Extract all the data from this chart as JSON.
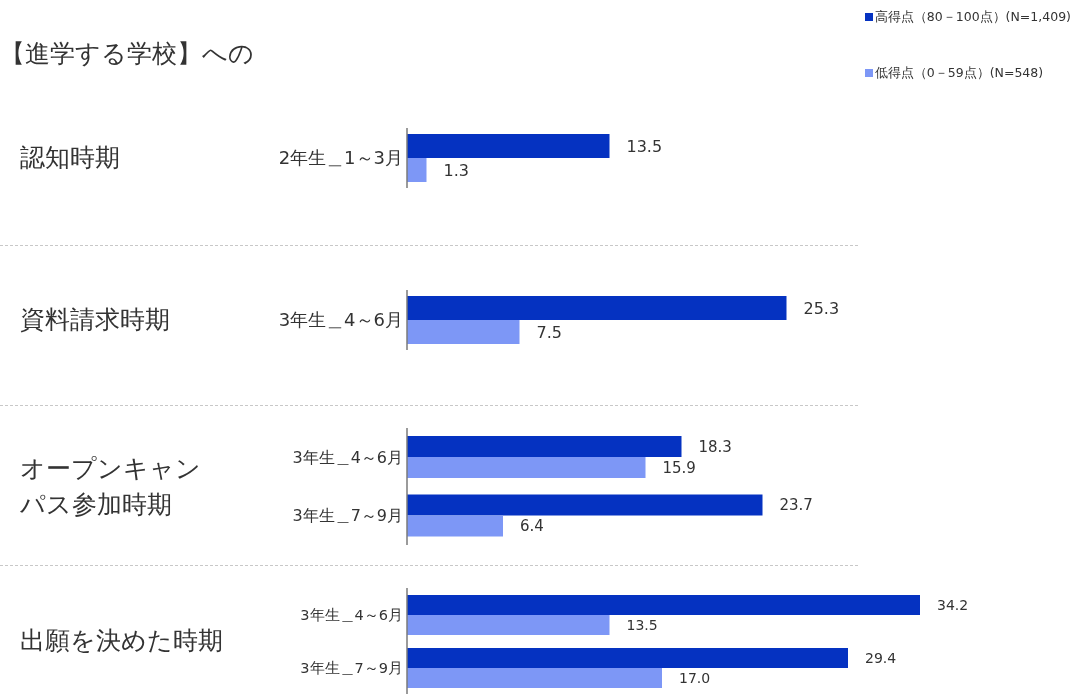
{
  "chart_data": [
    {
      "type": "bar",
      "orientation": "horizontal",
      "title": "【進学する学校】への",
      "ylabel": "認知時期",
      "categories": [
        "2年生＿1～3月"
      ],
      "series": [
        {
          "name": "高得点（80－100点）(N=1,409)",
          "color": "#0532c1",
          "values": [
            13.5
          ],
          "value_labels": [
            "13.5"
          ]
        },
        {
          "name": "低得点（0－59点）(N=548)",
          "color": "#7d97f6",
          "values": [
            1.3
          ],
          "value_labels": [
            "1.3"
          ]
        }
      ],
      "legend": "top right"
    },
    {
      "type": "bar",
      "orientation": "horizontal",
      "ylabel": "資料請求時期",
      "categories": [
        "3年生＿4～6月"
      ],
      "series": [
        {
          "color": "#0532c1",
          "values": [
            25.3
          ],
          "value_labels": [
            "25.3"
          ]
        },
        {
          "color": "#7d97f6",
          "values": [
            7.5
          ],
          "value_labels": [
            "7.5"
          ]
        }
      ]
    },
    {
      "type": "bar",
      "orientation": "horizontal",
      "ylabel": "オープンキャンパス参加時期",
      "categories": [
        "3年生＿4～6月",
        "3年生＿7～9月"
      ],
      "series": [
        {
          "color": "#0532c1",
          "values": [
            18.3,
            23.7
          ],
          "value_labels": [
            "18.3",
            "23.7"
          ]
        },
        {
          "color": "#7d97f6",
          "values": [
            15.9,
            6.4
          ],
          "value_labels": [
            "15.9",
            "6.4"
          ]
        }
      ]
    },
    {
      "type": "bar",
      "orientation": "horizontal",
      "ylabel": "出願を決めた時期",
      "categories": [
        "3年生＿4～6月",
        "3年生＿7～9月"
      ],
      "series": [
        {
          "color": "#0532c1",
          "values": [
            34.2,
            29.4
          ],
          "value_labels": [
            "34.2",
            "29.4"
          ]
        },
        {
          "color": "#7d97f6",
          "values": [
            13.5,
            17.0
          ],
          "value_labels": [
            "13.5",
            "17.0"
          ]
        }
      ]
    }
  ]
}
